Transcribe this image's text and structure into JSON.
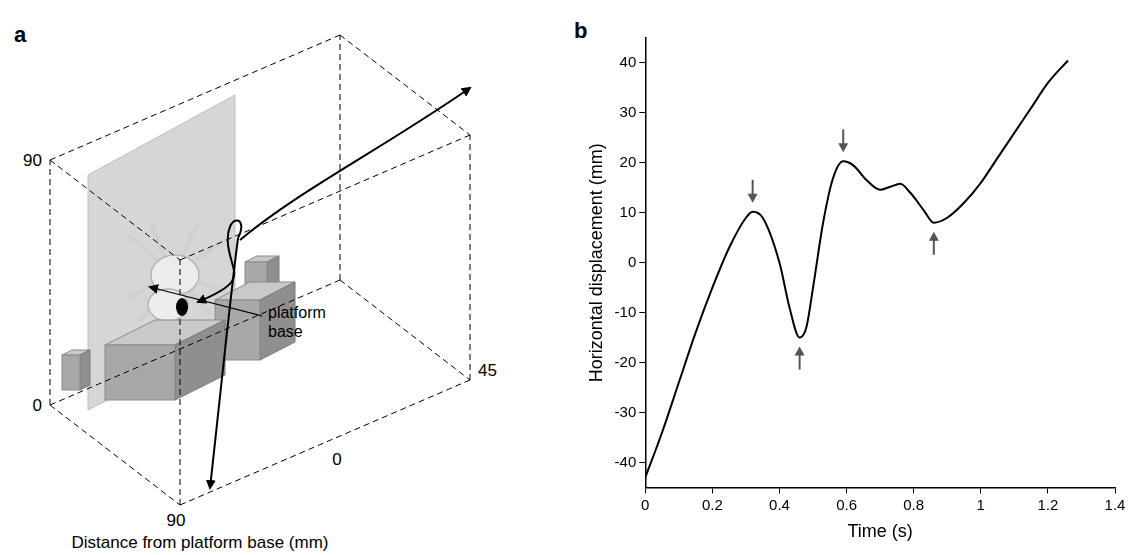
{
  "diagram": {
    "panel_label": "a",
    "axis_title": "Distance from platform base (mm)",
    "callout": "platform base",
    "axes": {
      "height": {
        "ticks": [
          0,
          90
        ]
      },
      "depth": {
        "ticks": [
          0,
          90
        ]
      },
      "width": {
        "ticks": [
          0,
          45
        ]
      }
    }
  },
  "chart_data": {
    "panel_label": "b",
    "type": "line",
    "x_label": "Time (s)",
    "y_label": "Horizontal displacement (mm)",
    "x": [
      0,
      0.05,
      0.1,
      0.15,
      0.2,
      0.25,
      0.3,
      0.32,
      0.35,
      0.4,
      0.43,
      0.46,
      0.48,
      0.5,
      0.53,
      0.56,
      0.59,
      0.62,
      0.66,
      0.7,
      0.73,
      0.76,
      0.79,
      0.83,
      0.86,
      0.9,
      0.95,
      1.0,
      1.05,
      1.1,
      1.15,
      1.2,
      1.26
    ],
    "values": [
      -43,
      -34,
      -24,
      -14,
      -5,
      3,
      9,
      10.2,
      9,
      0,
      -9,
      -15,
      -13,
      -5,
      8,
      17,
      20.3,
      19.5,
      16.5,
      14.6,
      15.2,
      15.8,
      14,
      10.5,
      8,
      9,
      12,
      16,
      21,
      26,
      31,
      36,
      40.5
    ],
    "color": "#000000",
    "xlim": [
      0,
      1.4
    ],
    "xticks": [
      0,
      0.2,
      0.4,
      0.6,
      0.8,
      1,
      1.2,
      1.4
    ],
    "ylim": [
      -45,
      45
    ],
    "yticks": [
      -40,
      -30,
      -20,
      -10,
      0,
      10,
      20,
      30,
      40
    ],
    "grid": false,
    "arrows": [
      {
        "x": 0.32,
        "y": 10.2,
        "direction": "down"
      },
      {
        "x": 0.46,
        "y": -15,
        "direction": "up"
      },
      {
        "x": 0.59,
        "y": 20.3,
        "direction": "down"
      },
      {
        "x": 0.86,
        "y": 8,
        "direction": "up"
      }
    ]
  }
}
